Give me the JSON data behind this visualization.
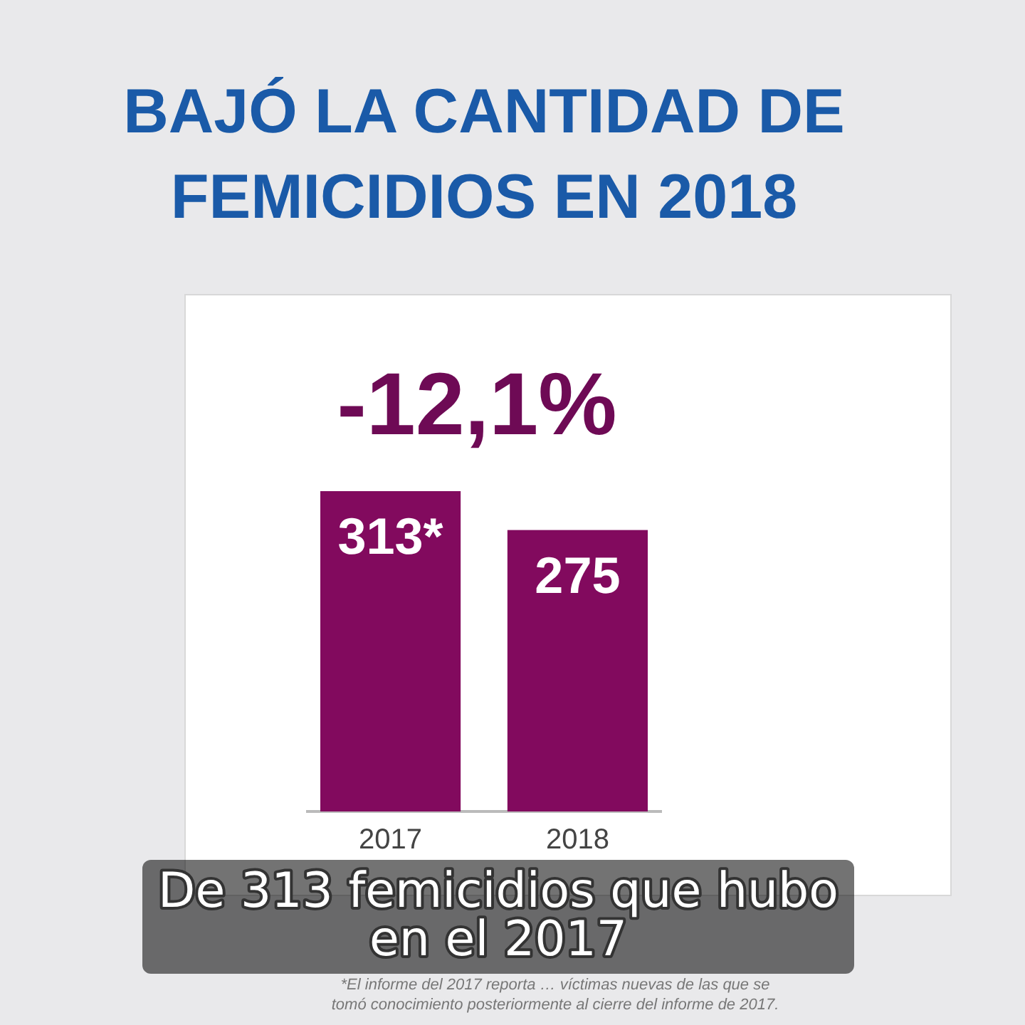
{
  "chart_data": {
    "type": "bar",
    "title": "BAJÓ LA CANTIDAD DE\nFEMICIDIOS EN 2018",
    "categories": [
      "2017",
      "2018"
    ],
    "values": [
      313,
      275
    ],
    "value_labels": [
      "313*",
      "275"
    ],
    "color": "#820a5e",
    "annotations": [
      "-12,1%",
      "De 313 femicidios que hubo\nen el 2017",
      "*El informe del 2017 reporta … víctimas nuevas de las que se\ntomó conocimiento posteriormente al cierre del informe de 2017."
    ]
  }
}
